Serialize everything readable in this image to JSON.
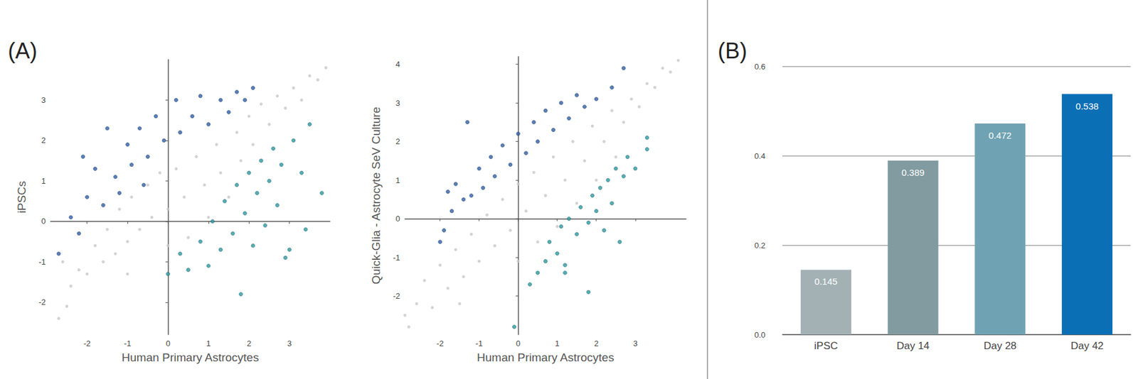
{
  "chart_data": [
    {
      "type": "scatter",
      "title": "(A)",
      "x_label": "Human Primary Astrocytes",
      "y_label": "iPSCs",
      "xlim": [
        -2.9,
        4.0
      ],
      "xticks": [
        -2,
        -1,
        0,
        1,
        2,
        3
      ],
      "ylim": [
        -2.8,
        4.0
      ],
      "yticks": [
        -2,
        -1,
        0,
        1,
        2,
        3
      ],
      "grid": false,
      "series": [
        {
          "color": "#c8c8c8",
          "values": [
            [
              -2.7,
              -2.4
            ],
            [
              -2.5,
              -2.1
            ],
            [
              -2.4,
              -1.6
            ],
            [
              -2.2,
              -1.2
            ],
            [
              -2,
              -1.3
            ],
            [
              -1.8,
              -0.6
            ],
            [
              -1.6,
              -1
            ],
            [
              -1.5,
              -0.2
            ],
            [
              -1.3,
              -0.8
            ],
            [
              -1.2,
              0.3
            ],
            [
              -1,
              -0.5
            ],
            [
              -0.9,
              0.6
            ],
            [
              -0.7,
              -0.2
            ],
            [
              -0.5,
              0.9
            ],
            [
              -0.4,
              0.1
            ],
            [
              -0.2,
              1.2
            ],
            [
              0,
              0.3
            ],
            [
              0,
              -0.6
            ],
            [
              0.2,
              1.3
            ],
            [
              0.4,
              0.6
            ],
            [
              0.5,
              -0.4
            ],
            [
              0.7,
              1.6
            ],
            [
              0.9,
              0.9
            ],
            [
              1,
              0.1
            ],
            [
              1.2,
              1.9
            ],
            [
              1.3,
              1.2
            ],
            [
              1.5,
              0.6
            ],
            [
              1.7,
              2.2
            ],
            [
              1.8,
              1.5
            ],
            [
              2,
              2.6
            ],
            [
              2.1,
              1.9
            ],
            [
              2.3,
              2.9
            ],
            [
              2.5,
              2.4
            ],
            [
              2.7,
              3.1
            ],
            [
              2.9,
              2.8
            ],
            [
              3.1,
              3.3
            ],
            [
              3.3,
              3.0
            ],
            [
              3.5,
              3.6
            ],
            [
              3.7,
              3.5
            ],
            [
              3.9,
              3.8
            ],
            [
              -2.6,
              -1.0
            ],
            [
              -1.0,
              -1.3
            ]
          ]
        },
        {
          "color": "#2f5fa7",
          "values": [
            [
              -2.7,
              -0.8
            ],
            [
              -2.4,
              0.1
            ],
            [
              -2.2,
              -0.3
            ],
            [
              -2,
              0.6
            ],
            [
              -1.8,
              1.3
            ],
            [
              -1.6,
              0.4
            ],
            [
              -1.5,
              2.3
            ],
            [
              -1.3,
              1.1
            ],
            [
              -1.2,
              0.7
            ],
            [
              -1,
              1.9
            ],
            [
              -0.9,
              1.4
            ],
            [
              -0.7,
              2.3
            ],
            [
              -0.5,
              1.6
            ],
            [
              -0.3,
              2.6
            ],
            [
              -0.1,
              2.0
            ],
            [
              0.2,
              3.0
            ],
            [
              0.3,
              2.2
            ],
            [
              0.6,
              2.6
            ],
            [
              0.8,
              3.1
            ],
            [
              1,
              2.4
            ],
            [
              1.3,
              3.0
            ],
            [
              1.5,
              2.7
            ],
            [
              1.7,
              3.2
            ],
            [
              1.9,
              3.0
            ],
            [
              2.1,
              3.3
            ],
            [
              -2.1,
              1.6
            ],
            [
              -0.6,
              0.9
            ]
          ]
        },
        {
          "color": "#2a9aa3",
          "values": [
            [
              0,
              -1.3
            ],
            [
              0.3,
              -0.8
            ],
            [
              0.5,
              -1.2
            ],
            [
              0.8,
              -0.5
            ],
            [
              1,
              -1.1
            ],
            [
              1.1,
              0
            ],
            [
              1.3,
              -0.7
            ],
            [
              1.4,
              0.5
            ],
            [
              1.6,
              -0.3
            ],
            [
              1.7,
              0.9
            ],
            [
              1.8,
              -1.8
            ],
            [
              1.9,
              0.2
            ],
            [
              2,
              1.2
            ],
            [
              2.1,
              -0.6
            ],
            [
              2.2,
              0.7
            ],
            [
              2.3,
              1.5
            ],
            [
              2.4,
              -0.1
            ],
            [
              2.5,
              1.0
            ],
            [
              2.6,
              1.8
            ],
            [
              2.7,
              0.4
            ],
            [
              2.8,
              1.4
            ],
            [
              3,
              -0.7
            ],
            [
              3.1,
              2.0
            ],
            [
              3.3,
              1.2
            ],
            [
              3.4,
              -0.2
            ],
            [
              3.5,
              2.4
            ],
            [
              3.8,
              0.7
            ],
            [
              2.9,
              -0.9
            ]
          ]
        }
      ]
    },
    {
      "type": "scatter",
      "x_label": "Human Primary Astrocytes",
      "y_label": "Quick-Glia - Astrocyte SeV Culture",
      "xlim": [
        -2.9,
        4.3
      ],
      "xticks": [
        -2,
        -1,
        0,
        1,
        2,
        3
      ],
      "ylim": [
        -3.0,
        4.2
      ],
      "yticks": [
        -2,
        -1,
        0,
        1,
        2,
        3,
        4
      ],
      "grid": false,
      "series": [
        {
          "color": "#c8c8c8",
          "values": [
            [
              -2.8,
              -2.8
            ],
            [
              -2.6,
              -2.2
            ],
            [
              -2.4,
              -1.6
            ],
            [
              -2.2,
              -2.3
            ],
            [
              -2,
              -1.2
            ],
            [
              -1.8,
              -1.8
            ],
            [
              -1.6,
              -0.8
            ],
            [
              -1.4,
              -1.5
            ],
            [
              -1.2,
              -0.4
            ],
            [
              -1,
              -1.1
            ],
            [
              -0.8,
              0.1
            ],
            [
              -0.6,
              -0.7
            ],
            [
              -0.4,
              0.5
            ],
            [
              -0.2,
              -0.3
            ],
            [
              0,
              0.9
            ],
            [
              0,
              -1.1
            ],
            [
              0.2,
              0.2
            ],
            [
              0.4,
              1.2
            ],
            [
              0.5,
              -0.6
            ],
            [
              0.7,
              0.6
            ],
            [
              0.9,
              1.6
            ],
            [
              1,
              -0.2
            ],
            [
              1.2,
              1.0
            ],
            [
              1.4,
              2.0
            ],
            [
              1.5,
              0.4
            ],
            [
              1.7,
              1.5
            ],
            [
              1.9,
              2.4
            ],
            [
              2,
              1.0
            ],
            [
              2.2,
              2.0
            ],
            [
              2.4,
              2.8
            ],
            [
              2.5,
              1.6
            ],
            [
              2.7,
              2.5
            ],
            [
              2.9,
              3.1
            ],
            [
              3.1,
              2.9
            ],
            [
              3.3,
              3.5
            ],
            [
              3.5,
              3.4
            ],
            [
              3.7,
              3.9
            ],
            [
              3.9,
              3.8
            ],
            [
              4.1,
              4.1
            ],
            [
              -1.5,
              -2.2
            ],
            [
              -2.9,
              -2.5
            ]
          ]
        },
        {
          "color": "#2f5fa7",
          "values": [
            [
              -2,
              -0.6
            ],
            [
              -1.9,
              -0.3
            ],
            [
              -1.7,
              0.2
            ],
            [
              -1.6,
              0.9
            ],
            [
              -1.4,
              0.5
            ],
            [
              -1.3,
              2.5
            ],
            [
              -1.2,
              0.6
            ],
            [
              -1,
              1.3
            ],
            [
              -0.9,
              0.8
            ],
            [
              -0.7,
              1.6
            ],
            [
              -0.6,
              1.1
            ],
            [
              -0.4,
              1.9
            ],
            [
              -0.2,
              1.4
            ],
            [
              0,
              2.2
            ],
            [
              0.2,
              1.7
            ],
            [
              0.4,
              2.5
            ],
            [
              0.5,
              2.0
            ],
            [
              0.7,
              2.8
            ],
            [
              0.9,
              2.3
            ],
            [
              1.1,
              3.0
            ],
            [
              1.3,
              2.6
            ],
            [
              1.5,
              3.2
            ],
            [
              1.7,
              2.9
            ],
            [
              2.0,
              3.1
            ],
            [
              2.4,
              3.4
            ],
            [
              2.7,
              3.9
            ],
            [
              -1.8,
              0.7
            ]
          ]
        },
        {
          "color": "#2a9aa3",
          "values": [
            [
              -0.1,
              -2.8
            ],
            [
              0.3,
              -1.7
            ],
            [
              0.5,
              -1.4
            ],
            [
              0.7,
              -1.1
            ],
            [
              0.8,
              -0.6
            ],
            [
              1,
              -0.9
            ],
            [
              1.1,
              -0.2
            ],
            [
              1.2,
              -1.2
            ],
            [
              1.3,
              0
            ],
            [
              1.5,
              -0.4
            ],
            [
              1.6,
              0.3
            ],
            [
              1.8,
              -1.9
            ],
            [
              1.8,
              -0.1
            ],
            [
              1.9,
              0.6
            ],
            [
              2,
              0.2
            ],
            [
              2.1,
              0.8
            ],
            [
              2.2,
              -0.3
            ],
            [
              2.3,
              1.0
            ],
            [
              2.4,
              0.4
            ],
            [
              2.5,
              1.3
            ],
            [
              2.6,
              -0.6
            ],
            [
              2.7,
              1.1
            ],
            [
              2.8,
              1.6
            ],
            [
              3.0,
              1.3
            ],
            [
              3.3,
              1.8
            ],
            [
              3.3,
              2.1
            ],
            [
              1.2,
              -1.4
            ]
          ]
        }
      ]
    },
    {
      "type": "bar",
      "title": "(B)",
      "categories": [
        "iPSC",
        "Day 14",
        "Day 28",
        "Day 42"
      ],
      "values": [
        0.145,
        0.389,
        0.472,
        0.538
      ],
      "colors": [
        "#a3b1b5",
        "#829ba0",
        "#6fa3b3",
        "#0b6fb5"
      ],
      "ylim": [
        0,
        0.6
      ],
      "yticks": [
        {
          "value": 0,
          "label": "0.0"
        },
        0.2,
        0.4,
        0.6
      ],
      "grid": true,
      "data_labels": true
    }
  ]
}
